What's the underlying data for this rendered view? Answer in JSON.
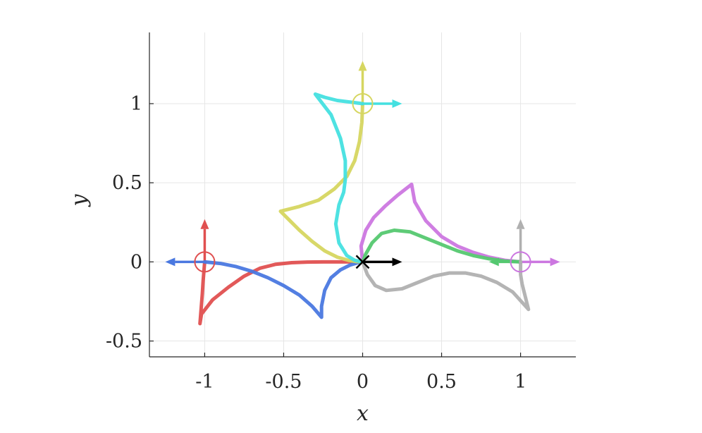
{
  "chart_data": {
    "type": "line",
    "title": "",
    "xlabel": "x",
    "ylabel": "y",
    "xlim": [
      -1.35,
      1.35
    ],
    "ylim": [
      -0.6,
      1.45
    ],
    "grid": true,
    "x_ticks": [
      {
        "value": -1,
        "label": "-1"
      },
      {
        "value": -0.5,
        "label": "-0.5"
      },
      {
        "value": 0,
        "label": "0"
      },
      {
        "value": 0.5,
        "label": "0.5"
      },
      {
        "value": 1,
        "label": "1"
      }
    ],
    "y_ticks": [
      {
        "value": -0.5,
        "label": "-0.5"
      },
      {
        "value": 0,
        "label": "0"
      },
      {
        "value": 0.5,
        "label": "0.5"
      },
      {
        "value": 1,
        "label": "1"
      }
    ],
    "target": {
      "x": 0,
      "y": 0,
      "heading": [
        0.25,
        0
      ],
      "color": "#000000"
    },
    "series": [
      {
        "name": "red",
        "color": "#e05050",
        "start": {
          "x": -1,
          "y": 0
        },
        "heading": [
          0,
          0.27
        ],
        "x": [
          -1.0,
          -1.005,
          -1.01,
          -1.015,
          -1.03,
          -1.02,
          -0.95,
          -0.85,
          -0.75,
          -0.65,
          -0.55,
          -0.45,
          -0.35,
          -0.25,
          -0.15,
          -0.05,
          0.0
        ],
        "y": [
          0.0,
          -0.06,
          -0.12,
          -0.2,
          -0.39,
          -0.33,
          -0.24,
          -0.16,
          -0.09,
          -0.04,
          -0.015,
          -0.005,
          -0.001,
          0.0,
          0.0,
          0.0,
          0.0
        ]
      },
      {
        "name": "blue",
        "color": "#4a78e0",
        "start": {
          "x": -1,
          "y": 0
        },
        "heading": [
          -0.25,
          0
        ],
        "x": [
          -1.0,
          -0.9,
          -0.8,
          -0.7,
          -0.6,
          -0.5,
          -0.4,
          -0.32,
          -0.26,
          -0.26,
          -0.24,
          -0.2,
          -0.14,
          -0.08,
          -0.03,
          0.0
        ],
        "y": [
          0.0,
          -0.01,
          -0.03,
          -0.06,
          -0.1,
          -0.15,
          -0.21,
          -0.28,
          -0.35,
          -0.28,
          -0.18,
          -0.1,
          -0.05,
          -0.02,
          -0.005,
          0.0
        ],
        "marker_end": "none"
      },
      {
        "name": "yellow",
        "color": "#d6d660",
        "start": {
          "x": 0,
          "y": 1
        },
        "heading": [
          0,
          0.27
        ],
        "x": [
          0.0,
          -0.005,
          -0.02,
          -0.05,
          -0.1,
          -0.18,
          -0.28,
          -0.4,
          -0.52,
          -0.47,
          -0.4,
          -0.32,
          -0.24,
          -0.16,
          -0.09,
          -0.04,
          0.0
        ],
        "y": [
          1.0,
          0.88,
          0.76,
          0.64,
          0.54,
          0.46,
          0.39,
          0.35,
          0.32,
          0.27,
          0.2,
          0.13,
          0.07,
          0.03,
          0.01,
          0.002,
          0.0
        ]
      },
      {
        "name": "cyan",
        "color": "#44e0e0",
        "start": {
          "x": 0,
          "y": 1
        },
        "heading": [
          0.25,
          0
        ],
        "x": [
          0.0,
          -0.08,
          -0.16,
          -0.24,
          -0.3,
          -0.2,
          -0.14,
          -0.11,
          -0.11,
          -0.12,
          -0.15,
          -0.17,
          -0.15,
          -0.1,
          -0.05,
          0.0
        ],
        "y": [
          1.0,
          1.01,
          1.02,
          1.04,
          1.06,
          0.93,
          0.78,
          0.64,
          0.52,
          0.44,
          0.36,
          0.24,
          0.12,
          0.04,
          0.01,
          0.0
        ]
      },
      {
        "name": "magenta",
        "color": "#cc77e0",
        "start": {
          "x": 1,
          "y": 0
        },
        "heading": [
          0.25,
          0
        ],
        "x": [
          1.0,
          0.9,
          0.8,
          0.7,
          0.6,
          0.5,
          0.4,
          0.33,
          0.31,
          0.22,
          0.14,
          0.07,
          0.02,
          -0.01,
          0.0
        ],
        "y": [
          0.0,
          0.01,
          0.03,
          0.06,
          0.1,
          0.16,
          0.26,
          0.38,
          0.49,
          0.42,
          0.35,
          0.28,
          0.2,
          0.1,
          0.0
        ]
      },
      {
        "name": "green",
        "color": "#55c870",
        "start": {
          "x": 1,
          "y": 0
        },
        "heading": [
          -0.2,
          0
        ],
        "x": [
          1.0,
          0.9,
          0.8,
          0.7,
          0.6,
          0.5,
          0.4,
          0.3,
          0.2,
          0.12,
          0.06,
          0.02,
          0.0
        ],
        "y": [
          0.0,
          0.005,
          0.02,
          0.04,
          0.07,
          0.11,
          0.15,
          0.19,
          0.2,
          0.18,
          0.12,
          0.05,
          0.0
        ]
      },
      {
        "name": "gray",
        "color": "#b0b0b0",
        "start": {
          "x": 1,
          "y": 0
        },
        "heading": [
          0,
          0.27
        ],
        "x": [
          1.0,
          1.0,
          1.01,
          1.03,
          1.05,
          0.95,
          0.85,
          0.75,
          0.65,
          0.55,
          0.45,
          0.35,
          0.25,
          0.15,
          0.08,
          0.03,
          0.0
        ],
        "y": [
          0.0,
          -0.08,
          -0.14,
          -0.22,
          -0.3,
          -0.19,
          -0.13,
          -0.09,
          -0.07,
          -0.07,
          -0.09,
          -0.13,
          -0.17,
          -0.18,
          -0.15,
          -0.08,
          0.0
        ]
      }
    ]
  }
}
